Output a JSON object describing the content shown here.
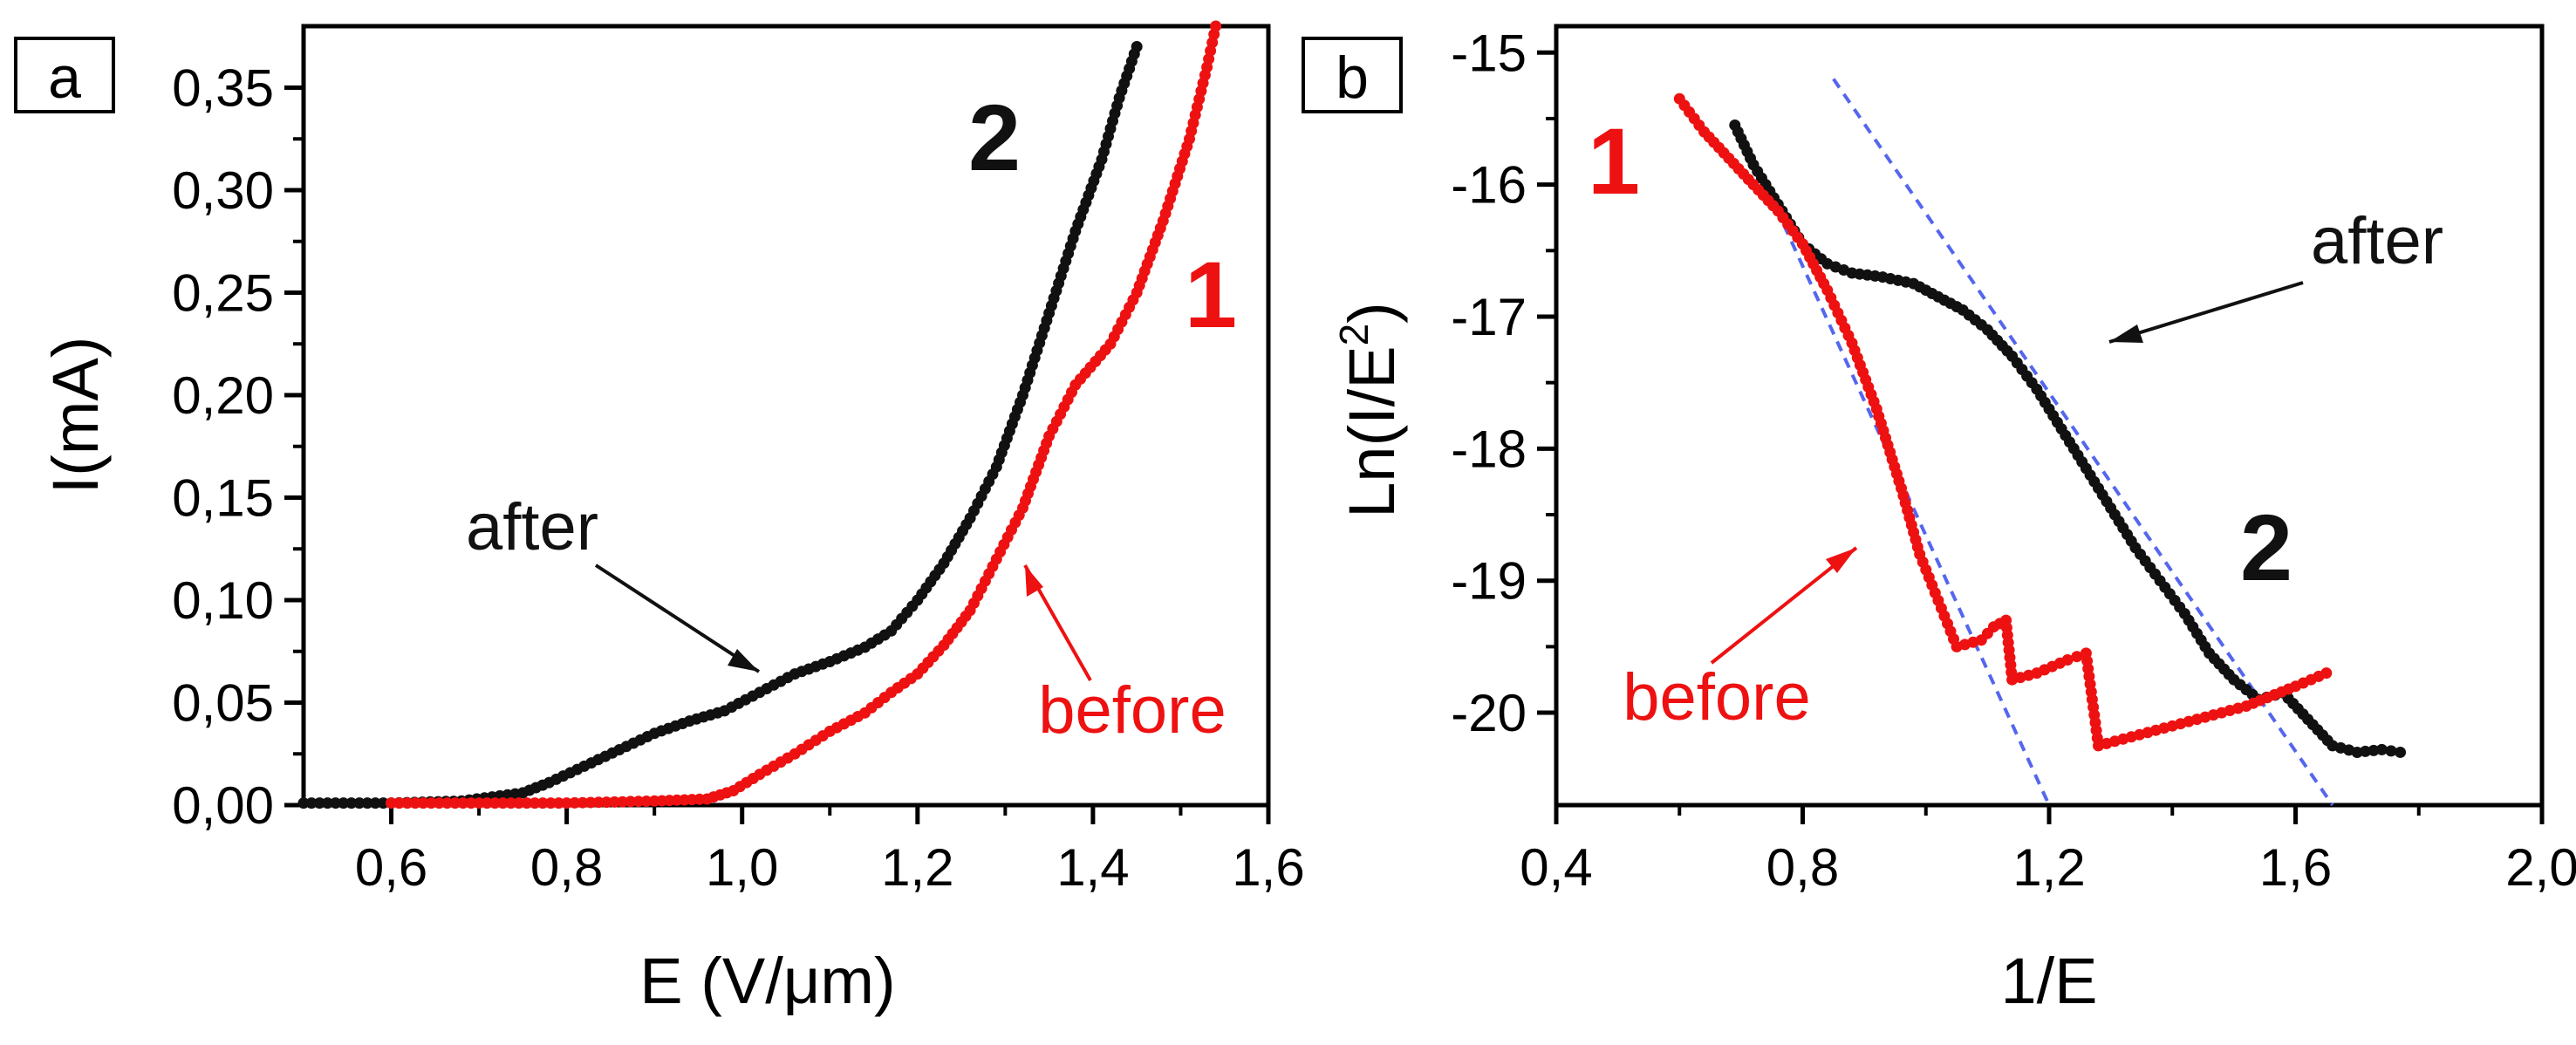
{
  "colors": {
    "series_before": "#ee1111",
    "series_after": "#111111",
    "fit_line": "#5566ee",
    "axis": "#000000"
  },
  "chart_data": [
    {
      "type": "scatter",
      "panel_label": "a",
      "xlabel": "E (V/μm)",
      "ylabel": "I(mA)",
      "xlim": [
        0.5,
        1.6
      ],
      "ylim": [
        0,
        0.38
      ],
      "x_ticks": [
        0.6,
        0.8,
        1.0,
        1.2,
        1.4,
        1.6
      ],
      "x_tick_labels": [
        "0,6",
        "0,8",
        "1,0",
        "1,2",
        "1,4",
        "1,6"
      ],
      "y_ticks": [
        0,
        0.05,
        0.1,
        0.15,
        0.2,
        0.25,
        0.3,
        0.35
      ],
      "y_tick_labels": [
        "0,00",
        "0,05",
        "0,10",
        "0,15",
        "0,20",
        "0,25",
        "0,30",
        "0,35"
      ],
      "series": [
        {
          "name": "after",
          "number": "2",
          "color": "#111111",
          "points": [
            [
              0.5,
              0.001
            ],
            [
              0.6,
              0.001
            ],
            [
              0.68,
              0.002
            ],
            [
              0.75,
              0.006
            ],
            [
              0.78,
              0.011
            ],
            [
              0.82,
              0.019
            ],
            [
              0.86,
              0.027
            ],
            [
              0.9,
              0.035
            ],
            [
              0.94,
              0.041
            ],
            [
              0.98,
              0.046
            ],
            [
              1.02,
              0.055
            ],
            [
              1.06,
              0.064
            ],
            [
              1.1,
              0.07
            ],
            [
              1.14,
              0.077
            ],
            [
              1.17,
              0.085
            ],
            [
              1.2,
              0.1
            ],
            [
              1.23,
              0.118
            ],
            [
              1.26,
              0.14
            ],
            [
              1.29,
              0.165
            ],
            [
              1.32,
              0.2
            ],
            [
              1.35,
              0.24
            ],
            [
              1.38,
              0.28
            ],
            [
              1.41,
              0.315
            ],
            [
              1.43,
              0.345
            ],
            [
              1.45,
              0.37
            ]
          ]
        },
        {
          "name": "before",
          "number": "1",
          "color": "#ee1111",
          "points": [
            [
              0.6,
              0.001
            ],
            [
              0.8,
              0.001
            ],
            [
              0.9,
              0.002
            ],
            [
              0.96,
              0.003
            ],
            [
              0.99,
              0.007
            ],
            [
              1.02,
              0.015
            ],
            [
              1.06,
              0.025
            ],
            [
              1.1,
              0.036
            ],
            [
              1.14,
              0.045
            ],
            [
              1.17,
              0.055
            ],
            [
              1.2,
              0.064
            ],
            [
              1.23,
              0.078
            ],
            [
              1.26,
              0.095
            ],
            [
              1.29,
              0.12
            ],
            [
              1.32,
              0.145
            ],
            [
              1.35,
              0.18
            ],
            [
              1.38,
              0.205
            ],
            [
              1.42,
              0.225
            ],
            [
              1.45,
              0.25
            ],
            [
              1.48,
              0.285
            ],
            [
              1.51,
              0.325
            ],
            [
              1.53,
              0.36
            ],
            [
              1.54,
              0.38
            ]
          ]
        }
      ],
      "annotations": [
        "after",
        "before",
        "2",
        "1"
      ]
    },
    {
      "type": "scatter",
      "panel_label": "b",
      "xlabel": "1/E",
      "ylabel": "Ln(I/E²)",
      "xlim": [
        0.4,
        2.0
      ],
      "ylim": [
        -20.7,
        -14.8
      ],
      "x_ticks": [
        0.4,
        0.8,
        1.2,
        1.6,
        2.0
      ],
      "x_tick_labels": [
        "0,4",
        "0,8",
        "1,2",
        "1,6",
        "2,0"
      ],
      "y_ticks": [
        -20,
        -19,
        -18,
        -17,
        -16,
        -15
      ],
      "y_tick_labels": [
        "-20",
        "-19",
        "-18",
        "-17",
        "-16",
        "-15"
      ],
      "series": [
        {
          "name": "after",
          "number": "2",
          "color": "#111111",
          "points": [
            [
              0.69,
              -15.55
            ],
            [
              0.72,
              -15.85
            ],
            [
              0.76,
              -16.15
            ],
            [
              0.8,
              -16.45
            ],
            [
              0.84,
              -16.6
            ],
            [
              0.88,
              -16.67
            ],
            [
              0.93,
              -16.7
            ],
            [
              0.98,
              -16.75
            ],
            [
              1.02,
              -16.85
            ],
            [
              1.06,
              -16.95
            ],
            [
              1.1,
              -17.1
            ],
            [
              1.14,
              -17.3
            ],
            [
              1.18,
              -17.55
            ],
            [
              1.22,
              -17.85
            ],
            [
              1.26,
              -18.15
            ],
            [
              1.3,
              -18.45
            ],
            [
              1.34,
              -18.75
            ],
            [
              1.38,
              -19.0
            ],
            [
              1.42,
              -19.25
            ],
            [
              1.46,
              -19.55
            ],
            [
              1.5,
              -19.75
            ],
            [
              1.54,
              -19.9
            ],
            [
              1.58,
              -19.85
            ],
            [
              1.62,
              -20.05
            ],
            [
              1.66,
              -20.25
            ],
            [
              1.7,
              -20.3
            ],
            [
              1.74,
              -20.28
            ],
            [
              1.77,
              -20.3
            ]
          ]
        },
        {
          "name": "before",
          "number": "1",
          "color": "#ee1111",
          "points": [
            [
              0.6,
              -15.35
            ],
            [
              0.64,
              -15.6
            ],
            [
              0.68,
              -15.8
            ],
            [
              0.72,
              -16.0
            ],
            [
              0.76,
              -16.2
            ],
            [
              0.8,
              -16.45
            ],
            [
              0.84,
              -16.8
            ],
            [
              0.88,
              -17.2
            ],
            [
              0.92,
              -17.7
            ],
            [
              0.96,
              -18.3
            ],
            [
              0.99,
              -18.8
            ],
            [
              1.02,
              -19.15
            ],
            [
              1.05,
              -19.5
            ],
            [
              1.09,
              -19.45
            ],
            [
              1.11,
              -19.35
            ],
            [
              1.13,
              -19.3
            ],
            [
              1.14,
              -19.75
            ],
            [
              1.18,
              -19.7
            ],
            [
              1.23,
              -19.6
            ],
            [
              1.26,
              -19.55
            ],
            [
              1.28,
              -20.25
            ],
            [
              1.36,
              -20.15
            ],
            [
              1.44,
              -20.05
            ],
            [
              1.52,
              -19.95
            ],
            [
              1.6,
              -19.8
            ],
            [
              1.65,
              -19.7
            ]
          ]
        }
      ],
      "fit_lines": [
        {
          "name": "fit-before",
          "points": [
            [
              0.72,
              -15.8
            ],
            [
              1.2,
              -20.7
            ]
          ]
        },
        {
          "name": "fit-after",
          "points": [
            [
              0.85,
              -15.2
            ],
            [
              1.66,
              -20.7
            ]
          ]
        }
      ],
      "annotations": [
        "after",
        "before",
        "2",
        "1"
      ]
    }
  ]
}
